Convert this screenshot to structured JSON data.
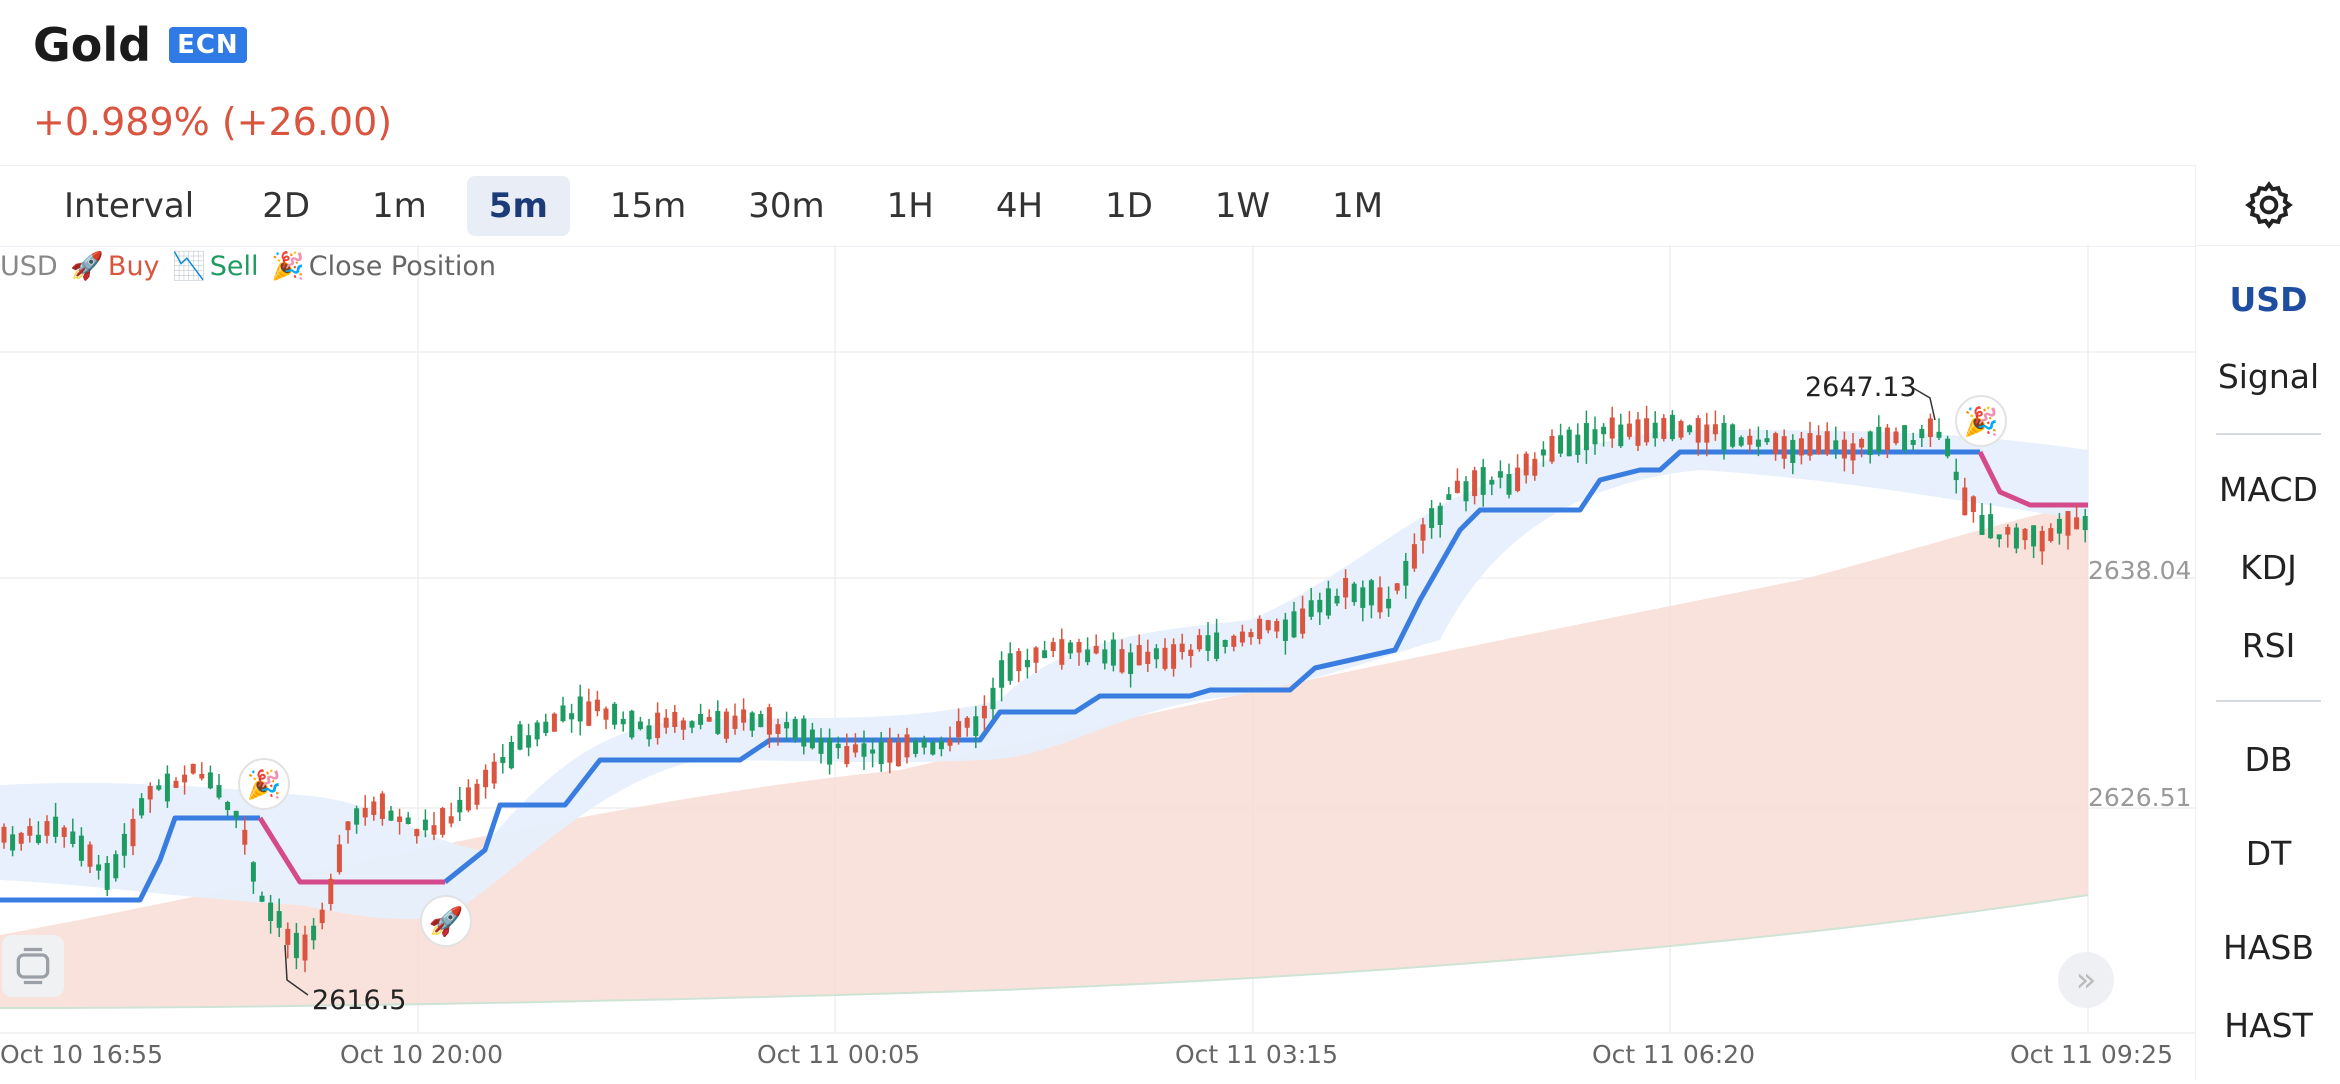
{
  "header": {
    "title": "Gold",
    "badge": "ECN",
    "change": "+0.989% (+26.00)"
  },
  "toolbar": {
    "items": [
      "Interval",
      "2D",
      "1m",
      "5m",
      "15m",
      "30m",
      "1H",
      "4H",
      "1D",
      "1W",
      "1M"
    ],
    "active": "5m",
    "settings_icon": "gear-icon"
  },
  "sidebar": {
    "group1": [
      "USD",
      "Signal"
    ],
    "group2": [
      "MACD",
      "KDJ",
      "RSI"
    ],
    "group3": [
      "DB",
      "DT",
      "HASB",
      "HAST"
    ],
    "active": "USD"
  },
  "chart_legend": {
    "unit": "USD",
    "buy_icon": "rocket-icon",
    "buy": "Buy",
    "sell_icon": "chart-decreasing-icon",
    "sell": "Sell",
    "close_icon": "party-popper-icon",
    "close": "Close Position"
  },
  "chart_data": {
    "type": "candlestick",
    "price_labels": [
      "2638.04",
      "2626.51"
    ],
    "x_ticks": [
      "Oct 10 16:55",
      "Oct 10 20:00",
      "Oct 11 00:05",
      "Oct 11 03:15",
      "Oct 11 06:20",
      "Oct 11 09:25"
    ],
    "annotations": {
      "high": "2647.13",
      "low": "2616.5"
    },
    "signals": [
      {
        "type": "close",
        "icon": "party-popper-icon"
      },
      {
        "type": "buy",
        "icon": "rocket-icon"
      },
      {
        "type": "close",
        "icon": "party-popper-icon"
      }
    ],
    "colors": {
      "up": "#d9553f",
      "down": "#1e9b62",
      "trend_line": "#3a7de0",
      "trend_line_sell": "#d54a8a",
      "cloud": "#e6effc",
      "band": "#f9ddd6"
    }
  }
}
